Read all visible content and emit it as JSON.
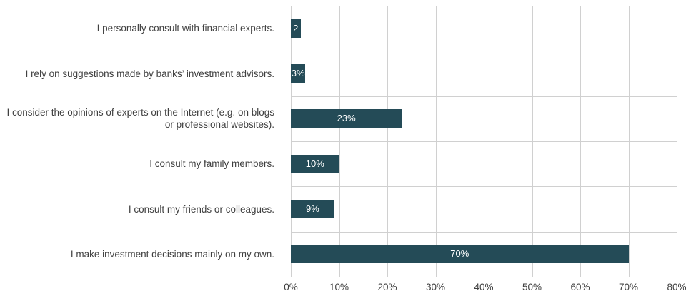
{
  "chart_data": {
    "type": "bar",
    "orientation": "horizontal",
    "categories": [
      "I personally consult with financial experts.",
      "I rely on suggestions made by banks’ investment advisors.",
      "I consider the opinions of experts on the Internet (e.g. on blogs or professional websites).",
      "I consult my family members.",
      "I consult my friends or colleagues.",
      "I make investment decisions mainly on my own."
    ],
    "values": [
      2,
      3,
      23,
      10,
      9,
      70
    ],
    "data_labels": [
      "2",
      "3%",
      "23%",
      "10%",
      "9%",
      "70%"
    ],
    "x_ticks": [
      "0%",
      "10%",
      "20%",
      "30%",
      "40%",
      "50%",
      "60%",
      "70%",
      "80%"
    ],
    "xlim": [
      0,
      80
    ],
    "title": "",
    "xlabel": "",
    "ylabel": "",
    "grid": true,
    "bar_color": "#244b57",
    "grid_color": "#d0d0d0"
  }
}
